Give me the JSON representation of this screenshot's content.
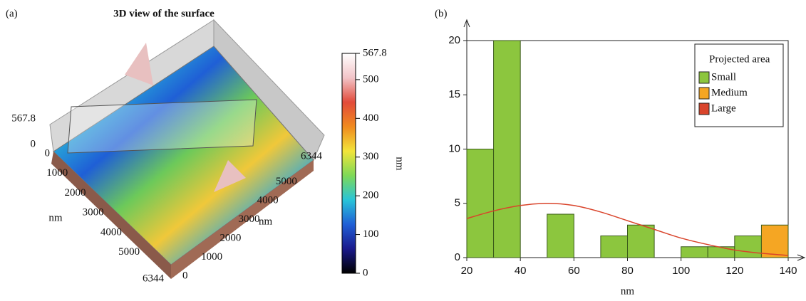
{
  "chart_data": [
    {
      "type": "surface",
      "panel_label": "(a)",
      "title": "3D view of the surface",
      "zlim": [
        0,
        567.8
      ],
      "zticks": [
        567.8,
        0
      ],
      "xlim": [
        0,
        6344
      ],
      "xticks": [
        0,
        1000,
        2000,
        3000,
        4000,
        5000,
        6344
      ],
      "xlabel": "nm",
      "ylim": [
        0,
        6344
      ],
      "yticks": [
        0,
        1000,
        2000,
        3000,
        4000,
        5000,
        6344
      ],
      "ylabel": "nm",
      "colorbar": {
        "label": "nm",
        "lim": [
          0,
          567.8
        ],
        "ticks": [
          0,
          100,
          200,
          300,
          400,
          500,
          567.8
        ],
        "colors": [
          "#000000",
          "#1a1a8c",
          "#1f5fd6",
          "#29c4d8",
          "#7ed957",
          "#f2e43a",
          "#f08a1e",
          "#e24a3a",
          "#f2c4c8",
          "#ffffff"
        ]
      }
    },
    {
      "type": "histogram",
      "panel_label": "(b)",
      "xlabel": "nm",
      "bins": [
        20,
        30,
        40,
        50,
        60,
        70,
        80,
        90,
        100,
        110,
        120,
        130,
        140
      ],
      "xlim": [
        20,
        140
      ],
      "xticks": [
        20,
        40,
        60,
        80,
        100,
        120,
        140
      ],
      "ylim": [
        0,
        20
      ],
      "yticks": [
        0,
        5,
        10,
        15,
        20
      ],
      "legend": "upper right",
      "legend_title": "Projected area",
      "series": [
        {
          "name": "Small",
          "color": "#8cc63e",
          "values": [
            10,
            20,
            0,
            4,
            0,
            2,
            3,
            0,
            1,
            1,
            2,
            0
          ]
        },
        {
          "name": "Medium",
          "color": "#f5a623",
          "values": [
            0,
            0,
            0,
            0,
            0,
            0,
            0,
            0,
            0,
            0,
            0,
            3
          ]
        },
        {
          "name": "Large",
          "color": "#d9442b",
          "x": [
            20,
            30,
            40,
            50,
            60,
            70,
            80,
            90,
            100,
            110,
            120,
            130,
            140
          ],
          "values": [
            3.6,
            4.3,
            4.8,
            5.0,
            4.8,
            4.2,
            3.4,
            2.6,
            1.8,
            1.2,
            0.7,
            0.4,
            0.2
          ]
        }
      ]
    }
  ]
}
